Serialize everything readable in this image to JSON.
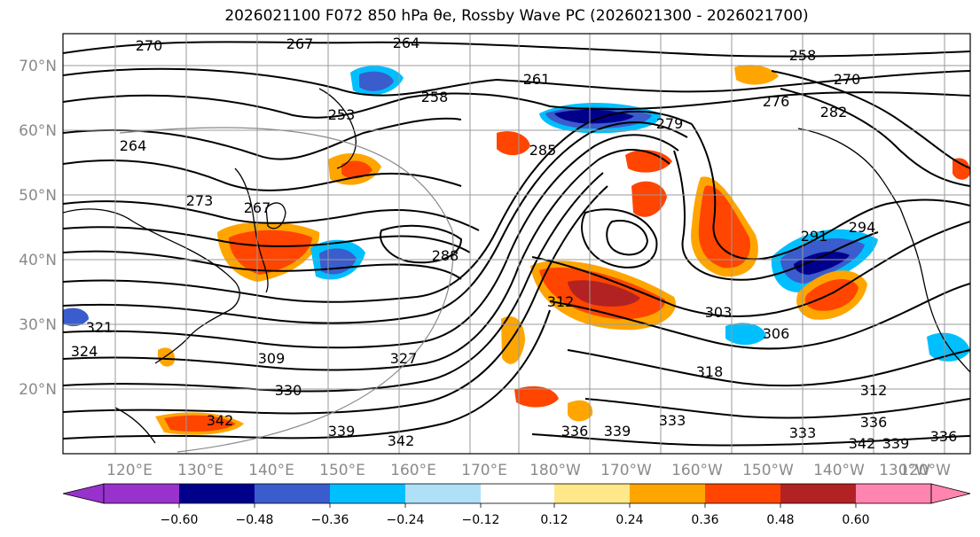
{
  "title": "2026021100 F072 850 hPa θe, Rossby Wave PC (2026021300 - 2026021700)",
  "lat_labels": [
    "70°N",
    "60°N",
    "50°N",
    "40°N",
    "30°N",
    "20°N"
  ],
  "lon_labels": [
    "120°E",
    "130°E",
    "140°E",
    "150°E",
    "160°E",
    "170°E",
    "180°W",
    "170°W",
    "160°W",
    "150°W",
    "140°W",
    "130°W",
    "120°W"
  ],
  "contour_labels": [
    "270",
    "267",
    "264",
    "258",
    "270",
    "261",
    "276",
    "282",
    "253",
    "258",
    "264",
    "279",
    "273",
    "285",
    "267",
    "288",
    "291",
    "294",
    "312",
    "303",
    "306",
    "321",
    "309",
    "318",
    "324",
    "330",
    "327",
    "342",
    "339",
    "342",
    "336",
    "339",
    "333",
    "333",
    "336",
    "342",
    "339",
    "336",
    "312"
  ],
  "colorbar": {
    "ticks": [
      "−0.60",
      "−0.48",
      "−0.36",
      "−0.24",
      "−0.12",
      "0.12",
      "0.24",
      "0.36",
      "0.48",
      "0.60"
    ],
    "colors": [
      "#9932cc",
      "#00008b",
      "#3a5ccc",
      "#00bfff",
      "#b0e0f8",
      "#ffffff",
      "#ffe88a",
      "#ffa500",
      "#ff4500",
      "#b22222",
      "#ff85b0"
    ]
  },
  "anomaly_colors": {
    "neg_strong": "#00008b",
    "neg_mid": "#3a5ccc",
    "neg_weak": "#00bfff",
    "neg_faint": "#b0e0f8",
    "pos_faint": "#ffe88a",
    "pos_weak": "#ffa500",
    "pos_mid": "#ff4500",
    "pos_strong": "#b22222"
  }
}
